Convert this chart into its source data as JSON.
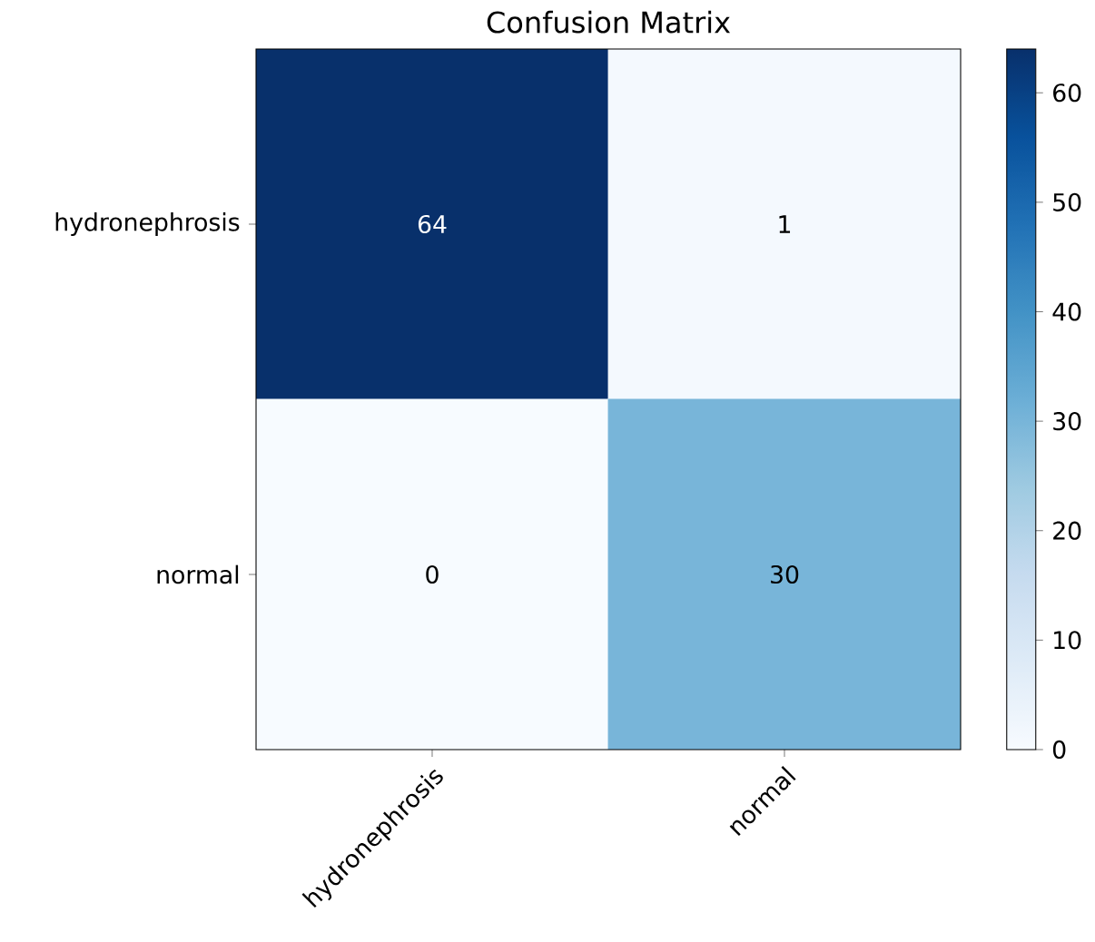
{
  "chart_data": {
    "type": "heatmap",
    "title": "Confusion Matrix",
    "categories": [
      "hydronephrosis",
      "normal"
    ],
    "y_categories": [
      "hydronephrosis",
      "normal"
    ],
    "cells": [
      [
        64,
        1
      ],
      [
        0,
        30
      ]
    ],
    "clim": [
      0,
      64
    ],
    "cticks": [
      0,
      10,
      20,
      30,
      40,
      50,
      60
    ],
    "data_labels": true
  }
}
